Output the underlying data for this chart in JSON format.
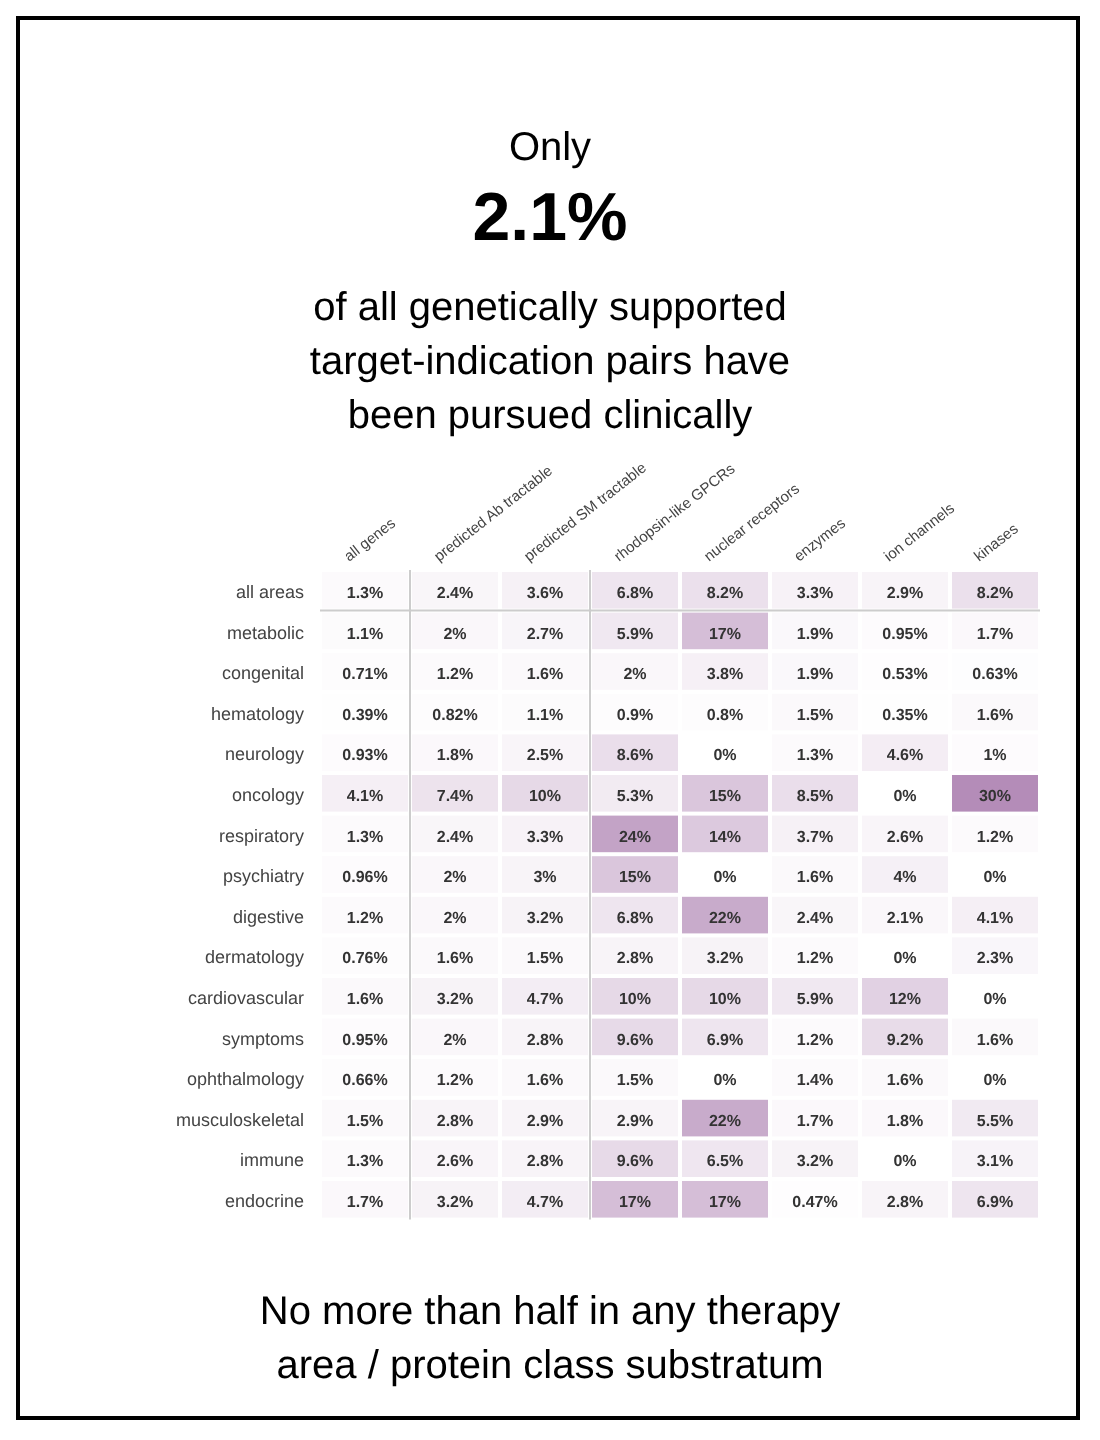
{
  "chart_data": {
    "type": "heatmap",
    "title": "Only",
    "subtitle": "2.1%",
    "annotations": [
      "of all genetically supported target-indication pairs have been pursued clinically",
      "No more than half in any therapy area / protein class substratum"
    ],
    "categories": [
      "all genes",
      "predicted Ab tractable",
      "predicted SM tractable",
      "rhodopsin-like GPCRs",
      "nuclear receptors",
      "enzymes",
      "ion channels",
      "kinases"
    ],
    "y_categories": [
      "all areas",
      "metabolic",
      "congenital",
      "hematology",
      "neurology",
      "oncology",
      "respiratory",
      "psychiatry",
      "digestive",
      "dermatology",
      "cardiovascular",
      "symptoms",
      "ophthalmology",
      "musculoskeletal",
      "immune",
      "endocrine"
    ],
    "cells": [
      [
        1.3,
        2.4,
        3.6,
        6.8,
        8.2,
        3.3,
        2.9,
        8.2
      ],
      [
        1.1,
        2,
        2.7,
        5.9,
        17,
        1.9,
        0.95,
        1.7
      ],
      [
        0.71,
        1.2,
        1.6,
        2,
        3.8,
        1.9,
        0.53,
        0.63
      ],
      [
        0.39,
        0.82,
        1.1,
        0.9,
        0.8,
        1.5,
        0.35,
        1.6
      ],
      [
        0.93,
        1.8,
        2.5,
        8.6,
        0,
        1.3,
        4.6,
        1
      ],
      [
        4.1,
        7.4,
        10,
        5.3,
        15,
        8.5,
        0,
        30
      ],
      [
        1.3,
        2.4,
        3.3,
        24,
        14,
        3.7,
        2.6,
        1.2
      ],
      [
        0.96,
        2,
        3,
        15,
        0,
        1.6,
        4,
        0
      ],
      [
        1.2,
        2,
        3.2,
        6.8,
        22,
        2.4,
        2.1,
        4.1
      ],
      [
        0.76,
        1.6,
        1.5,
        2.8,
        3.2,
        1.2,
        0,
        2.3
      ],
      [
        1.6,
        3.2,
        4.7,
        10,
        10,
        5.9,
        12,
        0
      ],
      [
        0.95,
        2,
        2.8,
        9.6,
        6.9,
        1.2,
        9.2,
        1.6
      ],
      [
        0.66,
        1.2,
        1.6,
        1.5,
        0,
        1.4,
        1.6,
        0
      ],
      [
        1.5,
        2.8,
        2.9,
        2.9,
        22,
        1.7,
        1.8,
        5.5
      ],
      [
        1.3,
        2.6,
        2.8,
        9.6,
        6.5,
        3.2,
        0,
        3.1
      ],
      [
        1.7,
        3.2,
        4.7,
        17,
        17,
        0.47,
        2.8,
        6.9
      ]
    ],
    "cell_labels": [
      [
        "1.3%",
        "2.4%",
        "3.6%",
        "6.8%",
        "8.2%",
        "3.3%",
        "2.9%",
        "8.2%"
      ],
      [
        "1.1%",
        "2%",
        "2.7%",
        "5.9%",
        "17%",
        "1.9%",
        "0.95%",
        "1.7%"
      ],
      [
        "0.71%",
        "1.2%",
        "1.6%",
        "2%",
        "3.8%",
        "1.9%",
        "0.53%",
        "0.63%"
      ],
      [
        "0.39%",
        "0.82%",
        "1.1%",
        "0.9%",
        "0.8%",
        "1.5%",
        "0.35%",
        "1.6%"
      ],
      [
        "0.93%",
        "1.8%",
        "2.5%",
        "8.6%",
        "0%",
        "1.3%",
        "4.6%",
        "1%"
      ],
      [
        "4.1%",
        "7.4%",
        "10%",
        "5.3%",
        "15%",
        "8.5%",
        "0%",
        "30%"
      ],
      [
        "1.3%",
        "2.4%",
        "3.3%",
        "24%",
        "14%",
        "3.7%",
        "2.6%",
        "1.2%"
      ],
      [
        "0.96%",
        "2%",
        "3%",
        "15%",
        "0%",
        "1.6%",
        "4%",
        "0%"
      ],
      [
        "1.2%",
        "2%",
        "3.2%",
        "6.8%",
        "22%",
        "2.4%",
        "2.1%",
        "4.1%"
      ],
      [
        "0.76%",
        "1.6%",
        "1.5%",
        "2.8%",
        "3.2%",
        "1.2%",
        "0%",
        "2.3%"
      ],
      [
        "1.6%",
        "3.2%",
        "4.7%",
        "10%",
        "10%",
        "5.9%",
        "12%",
        "0%"
      ],
      [
        "0.95%",
        "2%",
        "2.8%",
        "9.6%",
        "6.9%",
        "1.2%",
        "9.2%",
        "1.6%"
      ],
      [
        "0.66%",
        "1.2%",
        "1.6%",
        "1.5%",
        "0%",
        "1.4%",
        "1.6%",
        "0%"
      ],
      [
        "1.5%",
        "2.8%",
        "2.9%",
        "2.9%",
        "22%",
        "1.7%",
        "1.8%",
        "5.5%"
      ],
      [
        "1.3%",
        "2.6%",
        "2.8%",
        "9.6%",
        "6.5%",
        "3.2%",
        "0%",
        "3.1%"
      ],
      [
        "1.7%",
        "3.2%",
        "4.7%",
        "17%",
        "17%",
        "0.47%",
        "2.8%",
        "6.9%"
      ]
    ]
  }
}
